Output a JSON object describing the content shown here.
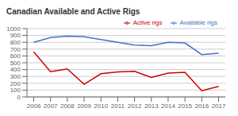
{
  "chart_data": {
    "type": "line",
    "title": "Canadian Available and Active Rigs",
    "x": [
      2006,
      2007,
      2008,
      2009,
      2010,
      2011,
      2012,
      2013,
      2014,
      2015,
      2016,
      2017
    ],
    "series": [
      {
        "name": "Available rigs",
        "color": "#4472C4",
        "values": [
          800,
          870,
          890,
          880,
          840,
          800,
          760,
          750,
          800,
          790,
          620,
          640
        ]
      },
      {
        "name": "Active rigs",
        "color": "#CC0000",
        "values": [
          660,
          370,
          410,
          185,
          340,
          365,
          375,
          285,
          350,
          360,
          91,
          155
        ]
      }
    ],
    "xlim": [
      2005.6,
      2017.4
    ],
    "xticks": [
      2006,
      2007,
      2008,
      2009,
      2010,
      2011,
      2012,
      2013,
      2014,
      2015,
      2016,
      2017
    ],
    "ylim": [
      0,
      1000
    ],
    "yticks": [
      0,
      100,
      200,
      300,
      400,
      500,
      600,
      700,
      800,
      900,
      1000
    ],
    "grid": true,
    "legend": "upper right"
  }
}
